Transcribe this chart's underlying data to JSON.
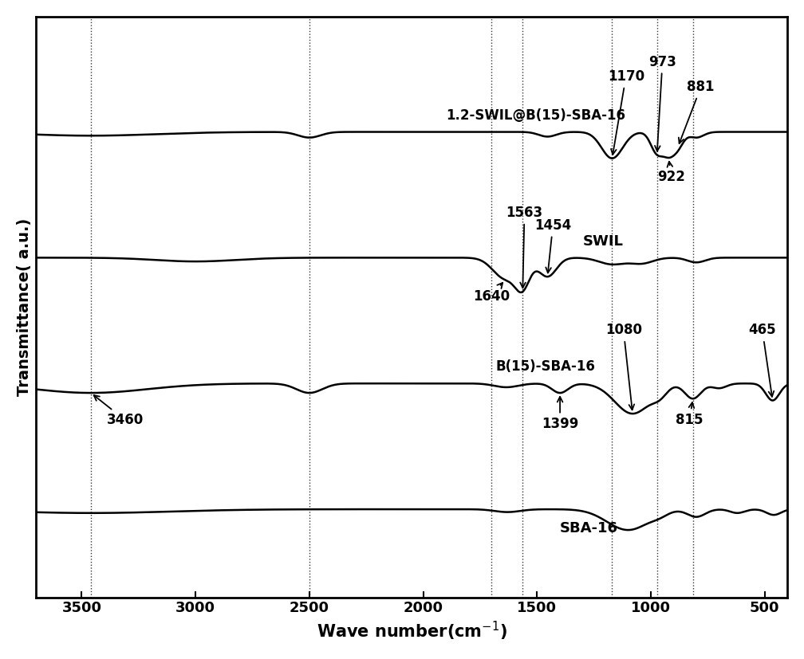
{
  "xmin": 3700,
  "xmax": 400,
  "xlabel": "Wave number(cm$^{-1}$)",
  "ylabel": "Transmittance( a.u.)",
  "dotted_lines": [
    3460,
    2500,
    1700,
    1563,
    1170,
    973,
    815
  ],
  "xticks": [
    3500,
    3000,
    2500,
    2000,
    1500,
    1000,
    500
  ],
  "curve_names": [
    "1.2-SWIL@B(15)-SBA-16",
    "SWIL",
    "B(15)-SBA-16",
    "SBA-16"
  ],
  "offsets": [
    1.8,
    1.2,
    0.6,
    0.0
  ]
}
